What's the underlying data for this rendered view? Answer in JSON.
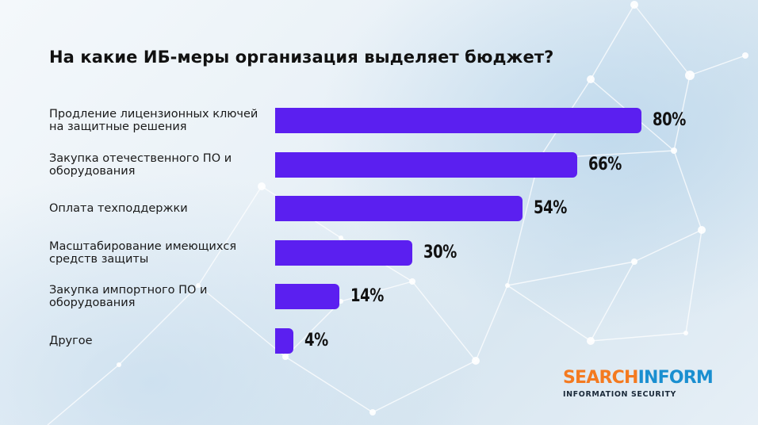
{
  "chart_data": {
    "type": "bar",
    "orientation": "horizontal",
    "title": "На какие ИБ-меры организация выделяет бюджет?",
    "categories": [
      "Продление лицензионных ключей на защитные решения",
      "Закупка отечественного ПО и оборудования",
      "Оплата техподдержки",
      "Масштабирование имеющихся средств защиты",
      "Закупка импортного ПО и оборудования",
      "Другое"
    ],
    "values": [
      80,
      66,
      54,
      30,
      14,
      4
    ],
    "value_labels": [
      "80%",
      "66%",
      "54%",
      "30%",
      "14%",
      "4%"
    ],
    "xlim": [
      0,
      100
    ],
    "grid": false,
    "legend": "none",
    "bar_color": "#5b1ff0"
  },
  "logo": {
    "word_part1": "SEARCH",
    "word_part2": "INFORM",
    "subtitle": "INFORMATION SECURITY",
    "color_part1": "#f47a20",
    "color_part2": "#1a8fd0"
  }
}
